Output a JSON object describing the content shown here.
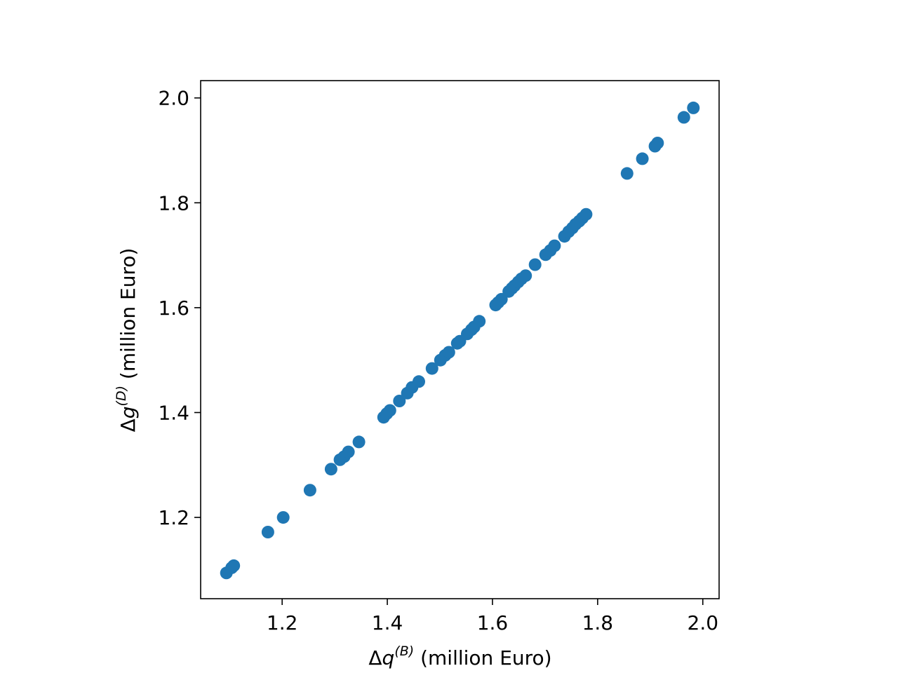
{
  "chart_data": {
    "type": "scatter",
    "xlabel": {
      "prefix": "Δ",
      "var": "q",
      "sup": "(B)",
      "suffix": " (million Euro)"
    },
    "ylabel": {
      "prefix": "Δ",
      "var": "g",
      "sup": "(D)",
      "suffix": " (million Euro)"
    },
    "xlim": [
      1.045,
      2.031
    ],
    "ylim": [
      1.045,
      2.033
    ],
    "xticks": [
      1.2,
      1.4,
      1.6,
      1.8,
      2.0
    ],
    "yticks": [
      1.2,
      1.4,
      1.6,
      1.8,
      2.0
    ],
    "xtick_labels": [
      "1.2",
      "1.4",
      "1.6",
      "1.8",
      "2.0"
    ],
    "ytick_labels": [
      "1.2",
      "1.4",
      "1.6",
      "1.8",
      "2.0"
    ],
    "grid": false,
    "marker_color": "#1f77b4",
    "series": [
      {
        "points": [
          [
            1.094,
            1.094
          ],
          [
            1.104,
            1.104
          ],
          [
            1.108,
            1.108
          ],
          [
            1.173,
            1.172
          ],
          [
            1.202,
            1.2
          ],
          [
            1.253,
            1.252
          ],
          [
            1.293,
            1.292
          ],
          [
            1.31,
            1.31
          ],
          [
            1.318,
            1.316
          ],
          [
            1.326,
            1.325
          ],
          [
            1.346,
            1.344
          ],
          [
            1.393,
            1.391
          ],
          [
            1.399,
            1.398
          ],
          [
            1.405,
            1.404
          ],
          [
            1.423,
            1.422
          ],
          [
            1.438,
            1.437
          ],
          [
            1.447,
            1.448
          ],
          [
            1.46,
            1.459
          ],
          [
            1.485,
            1.484
          ],
          [
            1.501,
            1.5
          ],
          [
            1.51,
            1.509
          ],
          [
            1.517,
            1.515
          ],
          [
            1.533,
            1.532
          ],
          [
            1.538,
            1.536
          ],
          [
            1.552,
            1.55
          ],
          [
            1.56,
            1.558
          ],
          [
            1.565,
            1.563
          ],
          [
            1.575,
            1.574
          ],
          [
            1.606,
            1.605
          ],
          [
            1.611,
            1.61
          ],
          [
            1.617,
            1.616
          ],
          [
            1.631,
            1.631
          ],
          [
            1.637,
            1.637
          ],
          [
            1.642,
            1.642
          ],
          [
            1.649,
            1.649
          ],
          [
            1.655,
            1.655
          ],
          [
            1.663,
            1.661
          ],
          [
            1.681,
            1.682
          ],
          [
            1.701,
            1.701
          ],
          [
            1.71,
            1.709
          ],
          [
            1.718,
            1.718
          ],
          [
            1.737,
            1.736
          ],
          [
            1.745,
            1.745
          ],
          [
            1.752,
            1.752
          ],
          [
            1.758,
            1.759
          ],
          [
            1.765,
            1.765
          ],
          [
            1.771,
            1.771
          ],
          [
            1.778,
            1.778
          ],
          [
            1.856,
            1.856
          ],
          [
            1.885,
            1.884
          ],
          [
            1.909,
            1.908
          ],
          [
            1.914,
            1.914
          ],
          [
            1.964,
            1.963
          ],
          [
            1.982,
            1.981
          ]
        ]
      }
    ]
  }
}
